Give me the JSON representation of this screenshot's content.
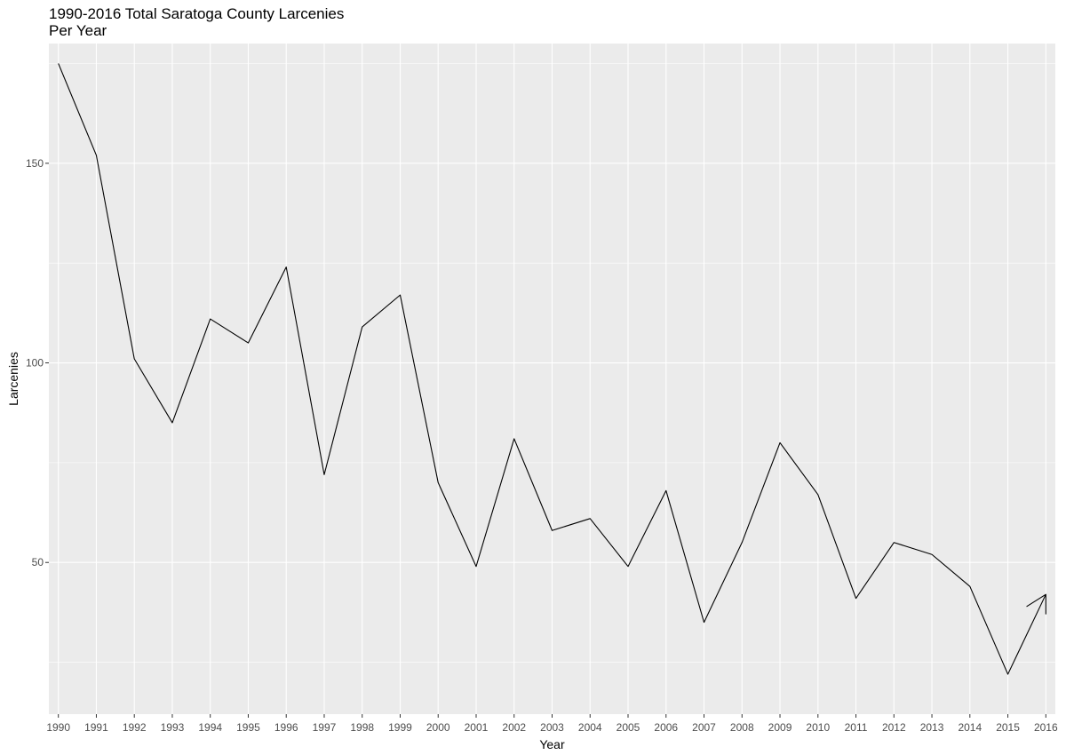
{
  "chart_data": {
    "type": "line",
    "title_lines": [
      "1990-2016 Total Saratoga County Larcenies",
      "Per Year"
    ],
    "xlabel": "Year",
    "ylabel": "Larcenies",
    "x": [
      1990,
      1991,
      1992,
      1993,
      1994,
      1995,
      1996,
      1997,
      1998,
      1999,
      2000,
      2001,
      2002,
      2003,
      2004,
      2005,
      2006,
      2007,
      2008,
      2009,
      2010,
      2011,
      2012,
      2013,
      2014,
      2015,
      2016
    ],
    "x_tick_labels": [
      "1990",
      "1991",
      "1992",
      "1993",
      "1994",
      "1995",
      "1996",
      "1997",
      "1998",
      "1999",
      "2000",
      "2001",
      "2002",
      "2003",
      "2004",
      "2005",
      "2006",
      "2007",
      "2008",
      "2009",
      "2010",
      "2011",
      "2012",
      "2013",
      "2014",
      "2015",
      "2016"
    ],
    "path_points": [
      [
        1990,
        175
      ],
      [
        1991,
        152
      ],
      [
        1992,
        101
      ],
      [
        1993,
        85
      ],
      [
        1994,
        111
      ],
      [
        1995,
        105
      ],
      [
        1996,
        124
      ],
      [
        1997,
        72
      ],
      [
        1998,
        109
      ],
      [
        1999,
        117
      ],
      [
        2000,
        70
      ],
      [
        2001,
        49
      ],
      [
        2002,
        81
      ],
      [
        2003,
        58
      ],
      [
        2004,
        61
      ],
      [
        2005,
        49
      ],
      [
        2006,
        68
      ],
      [
        2007,
        35
      ],
      [
        2008,
        55
      ],
      [
        2009,
        80
      ],
      [
        2010,
        67
      ],
      [
        2011,
        41
      ],
      [
        2012,
        55
      ],
      [
        2013,
        52
      ],
      [
        2014,
        44
      ],
      [
        2015,
        22
      ],
      [
        2016,
        42
      ],
      [
        2015.5,
        39
      ],
      [
        2016,
        42
      ],
      [
        2016,
        37
      ]
    ],
    "y_ticks": [
      50,
      100,
      150
    ],
    "y_tick_labels": [
      "50",
      "100",
      "150"
    ],
    "y_minor_ticks": [
      25,
      75,
      125,
      175
    ],
    "xlim": [
      1989.75,
      2016.25
    ],
    "ylim": [
      12,
      180
    ],
    "grid": true,
    "line_color": "#000000",
    "panel_color": "#ebebeb",
    "grid_color": "#ffffff"
  }
}
